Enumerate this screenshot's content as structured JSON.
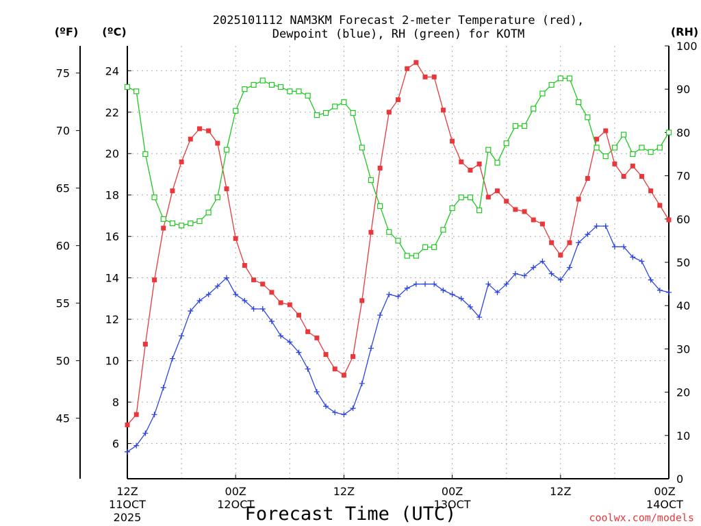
{
  "chart_data": {
    "type": "line",
    "title_line1": "2025101112 NAM3KM Forecast 2-meter Temperature (red),",
    "title_line2": "Dewpoint (blue), RH (green) for KOTM",
    "xlabel": "Forecast Time (UTC)",
    "credit": "coolwx.com/models",
    "units": {
      "fahrenheit": "(ºF)",
      "celsius": "(ºC)",
      "rh": "(RH)"
    },
    "colors": {
      "temperature": "#e8383b",
      "dewpoint": "#2b44e0",
      "rh": "#1ec81e"
    },
    "x_range_hours": [
      0,
      60
    ],
    "y_range_celsius": [
      4.3,
      25.2
    ],
    "y_range_fahrenheit": [
      39.74,
      77.36
    ],
    "y_range_rh": [
      0,
      100
    ],
    "x_ticks": [
      {
        "hour": 0,
        "label1": "12Z",
        "label2": "11OCT",
        "label3": "2025"
      },
      {
        "hour": 12,
        "label1": "00Z",
        "label2": "12OCT",
        "label3": ""
      },
      {
        "hour": 24,
        "label1": "12Z",
        "label2": "",
        "label3": ""
      },
      {
        "hour": 36,
        "label1": "00Z",
        "label2": "13OCT",
        "label3": ""
      },
      {
        "hour": 48,
        "label1": "12Z",
        "label2": "",
        "label3": ""
      },
      {
        "hour": 60,
        "label1": "00Z",
        "label2": "14OCT",
        "label3": ""
      }
    ],
    "celsius_ticks": [
      6,
      8,
      10,
      12,
      14,
      16,
      18,
      20,
      22,
      24
    ],
    "fahrenheit_ticks": [
      45,
      50,
      55,
      60,
      65,
      70,
      75
    ],
    "rh_ticks": [
      0,
      10,
      20,
      30,
      40,
      50,
      60,
      70,
      80,
      90,
      100
    ],
    "hours": [
      0,
      1,
      2,
      3,
      4,
      5,
      6,
      7,
      8,
      9,
      10,
      11,
      12,
      13,
      14,
      15,
      16,
      17,
      18,
      19,
      20,
      21,
      22,
      23,
      24,
      25,
      26,
      27,
      28,
      29,
      30,
      31,
      32,
      33,
      34,
      35,
      36,
      37,
      38,
      39,
      40,
      41,
      42,
      43,
      44,
      45,
      46,
      47,
      48,
      49,
      50,
      51,
      52,
      53,
      54,
      55,
      56,
      57,
      58,
      59,
      60
    ],
    "series": [
      {
        "name": "2-meter Temperature (°C)",
        "key": "temperature",
        "axis": "celsius",
        "marker": "filled-square",
        "values": [
          6.9,
          7.4,
          10.8,
          13.9,
          16.4,
          18.2,
          19.6,
          20.7,
          21.2,
          21.1,
          20.5,
          18.3,
          15.9,
          14.6,
          13.9,
          13.7,
          13.3,
          12.8,
          12.7,
          12.2,
          11.4,
          11.1,
          10.3,
          9.6,
          9.3,
          10.2,
          12.9,
          16.2,
          19.3,
          22.0,
          22.6,
          24.1,
          24.4,
          23.7,
          23.7,
          22.1,
          20.6,
          19.6,
          19.2,
          19.5,
          17.9,
          18.2,
          17.7,
          17.3,
          17.2,
          16.8,
          16.6,
          15.7,
          15.1,
          15.7,
          17.8,
          18.8,
          20.7,
          21.1,
          19.5,
          18.9,
          19.4,
          18.9,
          18.2,
          17.5,
          16.8
        ]
      },
      {
        "name": "Dewpoint (°C)",
        "key": "dewpoint",
        "axis": "celsius",
        "marker": "plus",
        "values": [
          5.6,
          5.9,
          6.5,
          7.4,
          8.7,
          10.1,
          11.2,
          12.4,
          12.9,
          13.2,
          13.6,
          14.0,
          13.2,
          12.9,
          12.5,
          12.5,
          11.9,
          11.2,
          10.9,
          10.4,
          9.6,
          8.5,
          7.8,
          7.5,
          7.4,
          7.7,
          8.9,
          10.6,
          12.2,
          13.2,
          13.1,
          13.5,
          13.7,
          13.7,
          13.7,
          13.4,
          13.2,
          13.0,
          12.6,
          12.1,
          13.7,
          13.3,
          13.7,
          14.2,
          14.1,
          14.5,
          14.8,
          14.2,
          13.9,
          14.5,
          15.7,
          16.1,
          16.5,
          16.5,
          15.5,
          15.5,
          15.0,
          14.8,
          13.9,
          13.4,
          13.3
        ]
      },
      {
        "name": "Relative Humidity (%)",
        "key": "rh",
        "axis": "rh",
        "marker": "open-square",
        "values": [
          90.5,
          89.5,
          75.0,
          65.0,
          60.0,
          59.0,
          58.5,
          59.0,
          59.5,
          61.5,
          65.0,
          76.0,
          85.0,
          90.0,
          91.0,
          92.0,
          91.0,
          90.5,
          89.5,
          89.5,
          88.5,
          84.0,
          84.5,
          86.0,
          87.0,
          84.5,
          76.5,
          69.0,
          63.0,
          57.0,
          55.0,
          51.5,
          51.5,
          53.5,
          53.5,
          57.5,
          62.5,
          65.0,
          65.0,
          62.0,
          76.0,
          73.0,
          77.5,
          81.5,
          81.5,
          85.5,
          89.0,
          91.0,
          92.5,
          92.5,
          87.0,
          83.5,
          76.5,
          74.5,
          76.5,
          79.5,
          75.0,
          76.5,
          75.5,
          76.5,
          80.0
        ]
      }
    ]
  }
}
